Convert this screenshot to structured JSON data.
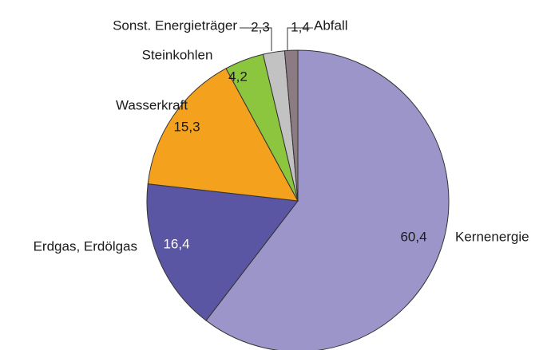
{
  "chart_data": {
    "type": "pie",
    "categories": [
      "Kernenergie",
      "Erdgas, Erdölgas",
      "Wasserkraft",
      "Steinkohlen",
      "Sonst. Energieträger",
      "Abfall"
    ],
    "values": [
      60.4,
      16.4,
      15.3,
      4.2,
      2.3,
      1.4
    ],
    "value_labels": [
      "60,4",
      "16,4",
      "15,3",
      "4,2",
      "2,3",
      "1,4"
    ],
    "colors": [
      "#9c95c9",
      "#5b56a3",
      "#f4a21d",
      "#8cc63e",
      "#c2c2c2",
      "#8c7b82"
    ]
  }
}
